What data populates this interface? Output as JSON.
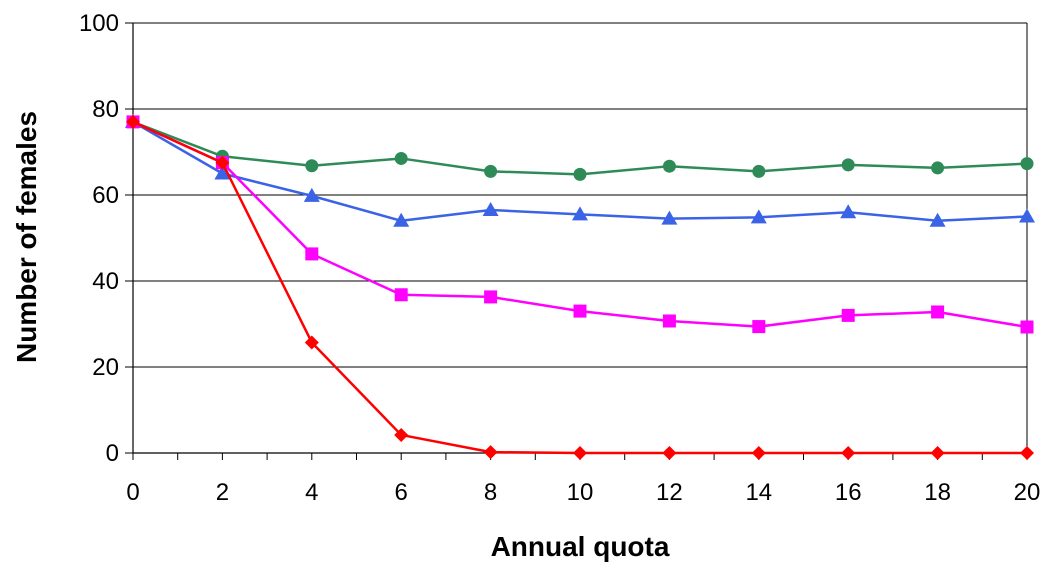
{
  "chart_data": {
    "type": "line",
    "xlabel": "Annual quota",
    "ylabel": "Number of females",
    "xlim": [
      0,
      20
    ],
    "ylim": [
      0,
      100
    ],
    "x": [
      0,
      2,
      4,
      6,
      8,
      10,
      12,
      14,
      16,
      18,
      20
    ],
    "x_ticks": [
      "0",
      "2",
      "4",
      "6",
      "8",
      "10",
      "12",
      "14",
      "16",
      "18",
      "20"
    ],
    "y_ticks": [
      "0",
      "20",
      "40",
      "60",
      "80",
      "100"
    ],
    "y_tick_values": [
      0,
      20,
      40,
      60,
      80,
      100
    ],
    "grid": "horizontal",
    "legend": "none",
    "series": [
      {
        "color": "#2e8b57",
        "marker": "circle",
        "values": [
          77,
          69,
          66.8,
          68.5,
          65.5,
          64.8,
          66.7,
          65.5,
          67,
          66.3,
          67.3
        ]
      },
      {
        "color": "#3a63e6",
        "marker": "triangle",
        "values": [
          77,
          65,
          59.8,
          54,
          56.5,
          55.5,
          54.5,
          54.8,
          56,
          54,
          55
        ]
      },
      {
        "color": "#ff00ff",
        "marker": "square",
        "values": [
          77,
          67.5,
          46.3,
          36.8,
          36.3,
          33,
          30.7,
          29.4,
          32,
          32.8,
          29.3
        ]
      },
      {
        "color": "#ff0000",
        "marker": "diamond",
        "values": [
          77,
          67.5,
          25.7,
          4.2,
          0.2,
          0,
          0,
          0,
          0,
          0,
          0
        ]
      }
    ]
  }
}
